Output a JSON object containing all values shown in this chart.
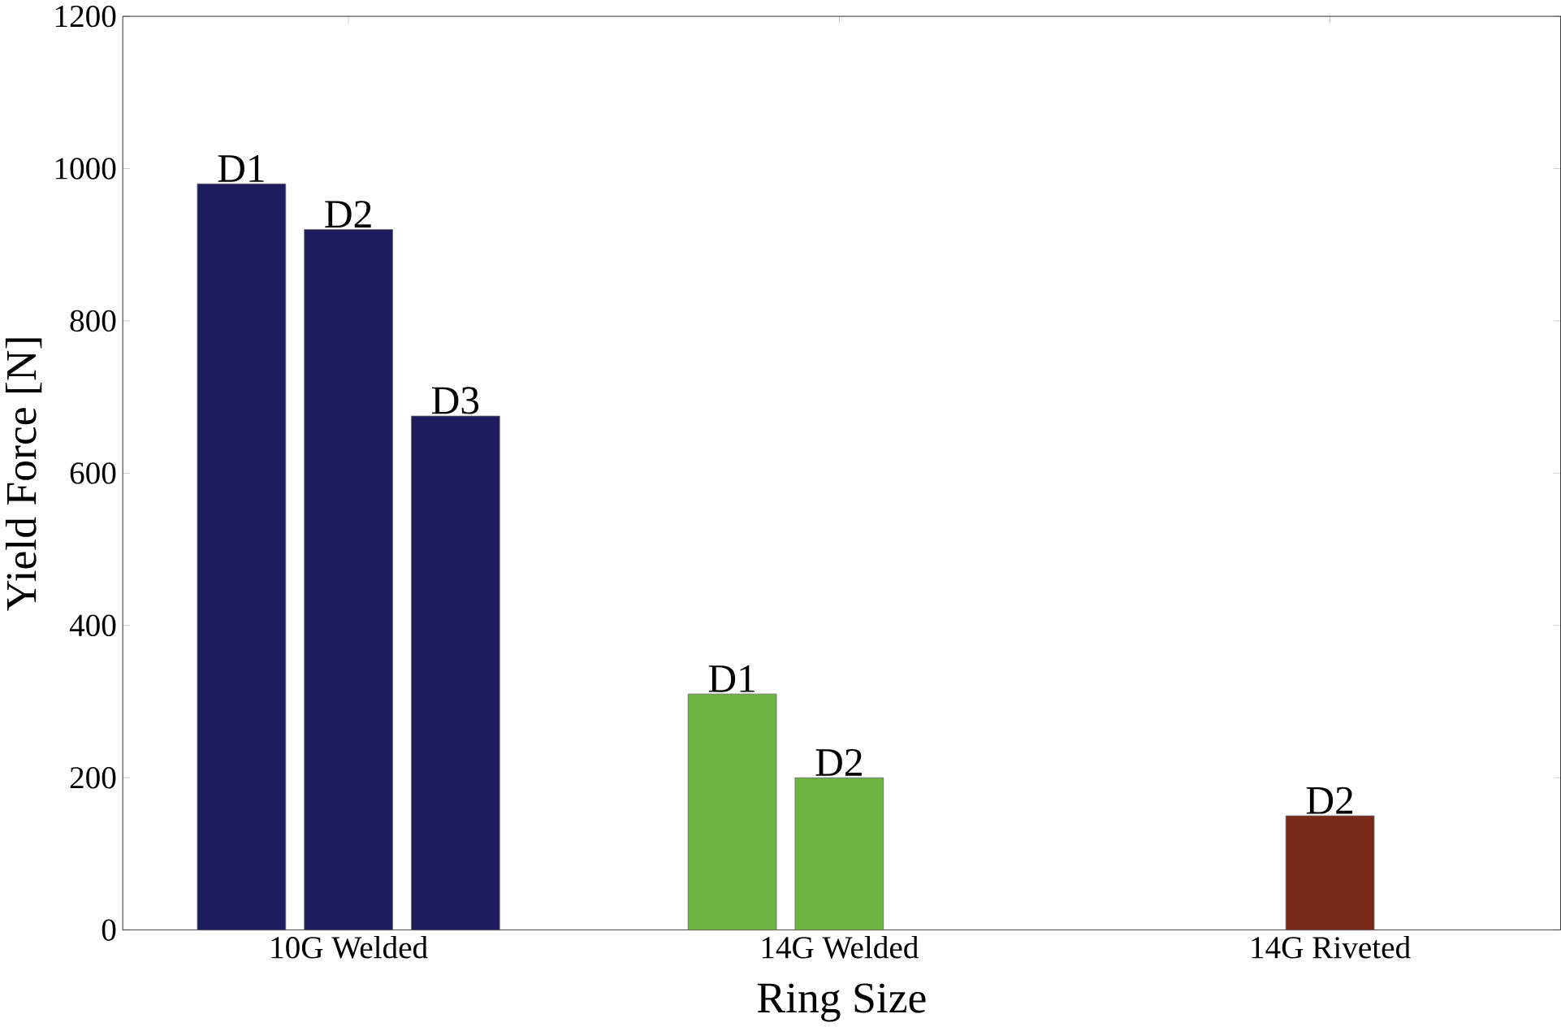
{
  "chart_data": {
    "type": "bar",
    "xlabel": "Ring Size",
    "ylabel": "Yield Force [N]",
    "categories": [
      "10G Welded",
      "14G Welded",
      "14G Riveted"
    ],
    "series": [
      {
        "name": "D1",
        "values": [
          980,
          310,
          null
        ],
        "colors": [
          "#1c1c5e",
          "#6cb43f",
          "#7a2a1a"
        ]
      },
      {
        "name": "D2",
        "values": [
          920,
          200,
          150
        ],
        "colors": [
          "#1c1c5e",
          "#6cb43f",
          "#7a2a1a"
        ]
      },
      {
        "name": "D3",
        "values": [
          675,
          null,
          null
        ],
        "colors": [
          "#1c1c5e",
          "#6cb43f",
          "#7a2a1a"
        ]
      }
    ],
    "ylim": [
      0,
      1200
    ],
    "yticks": [
      0,
      200,
      400,
      600,
      800,
      1000,
      1200
    ]
  }
}
